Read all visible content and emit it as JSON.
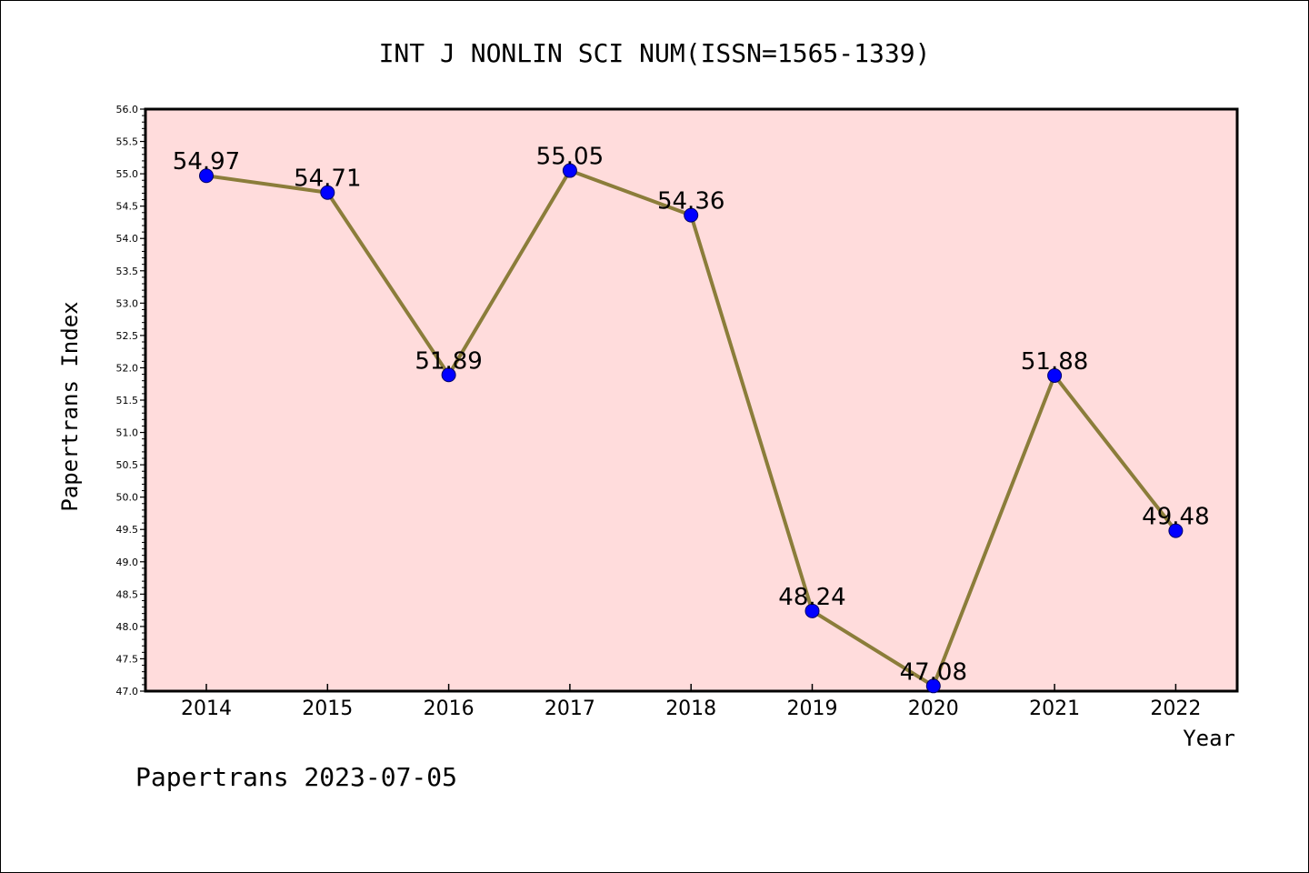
{
  "chart_data": {
    "type": "line",
    "title": "INT J NONLIN SCI NUM(ISSN=1565-1339)",
    "xlabel": "Year",
    "ylabel": "Papertrans Index",
    "footer": "Papertrans 2023-07-05",
    "categories": [
      "2014",
      "2015",
      "2016",
      "2017",
      "2018",
      "2019",
      "2020",
      "2021",
      "2022"
    ],
    "series": [
      {
        "values": [
          54.97,
          54.71,
          51.89,
          55.05,
          54.36,
          48.24,
          47.08,
          51.88,
          49.48
        ],
        "labels": [
          "54.97",
          "54.71",
          "51.89",
          "55.05",
          "54.36",
          "48.24",
          "47.08",
          "51.88",
          "49.48"
        ]
      }
    ],
    "ylim": [
      47.0,
      56.0
    ],
    "yticks": [
      "47.0",
      "47.5",
      "48.0",
      "48.5",
      "49.0",
      "49.5",
      "50.0",
      "50.5",
      "51.0",
      "51.5",
      "52.0",
      "52.5",
      "53.0",
      "53.5",
      "54.0",
      "54.5",
      "55.0",
      "55.5",
      "56.0"
    ],
    "grid": false,
    "colors": {
      "plot_background": "#ffdcdc",
      "line": "#8b7d3a",
      "marker": "#0000ff",
      "axis": "#000000"
    }
  }
}
